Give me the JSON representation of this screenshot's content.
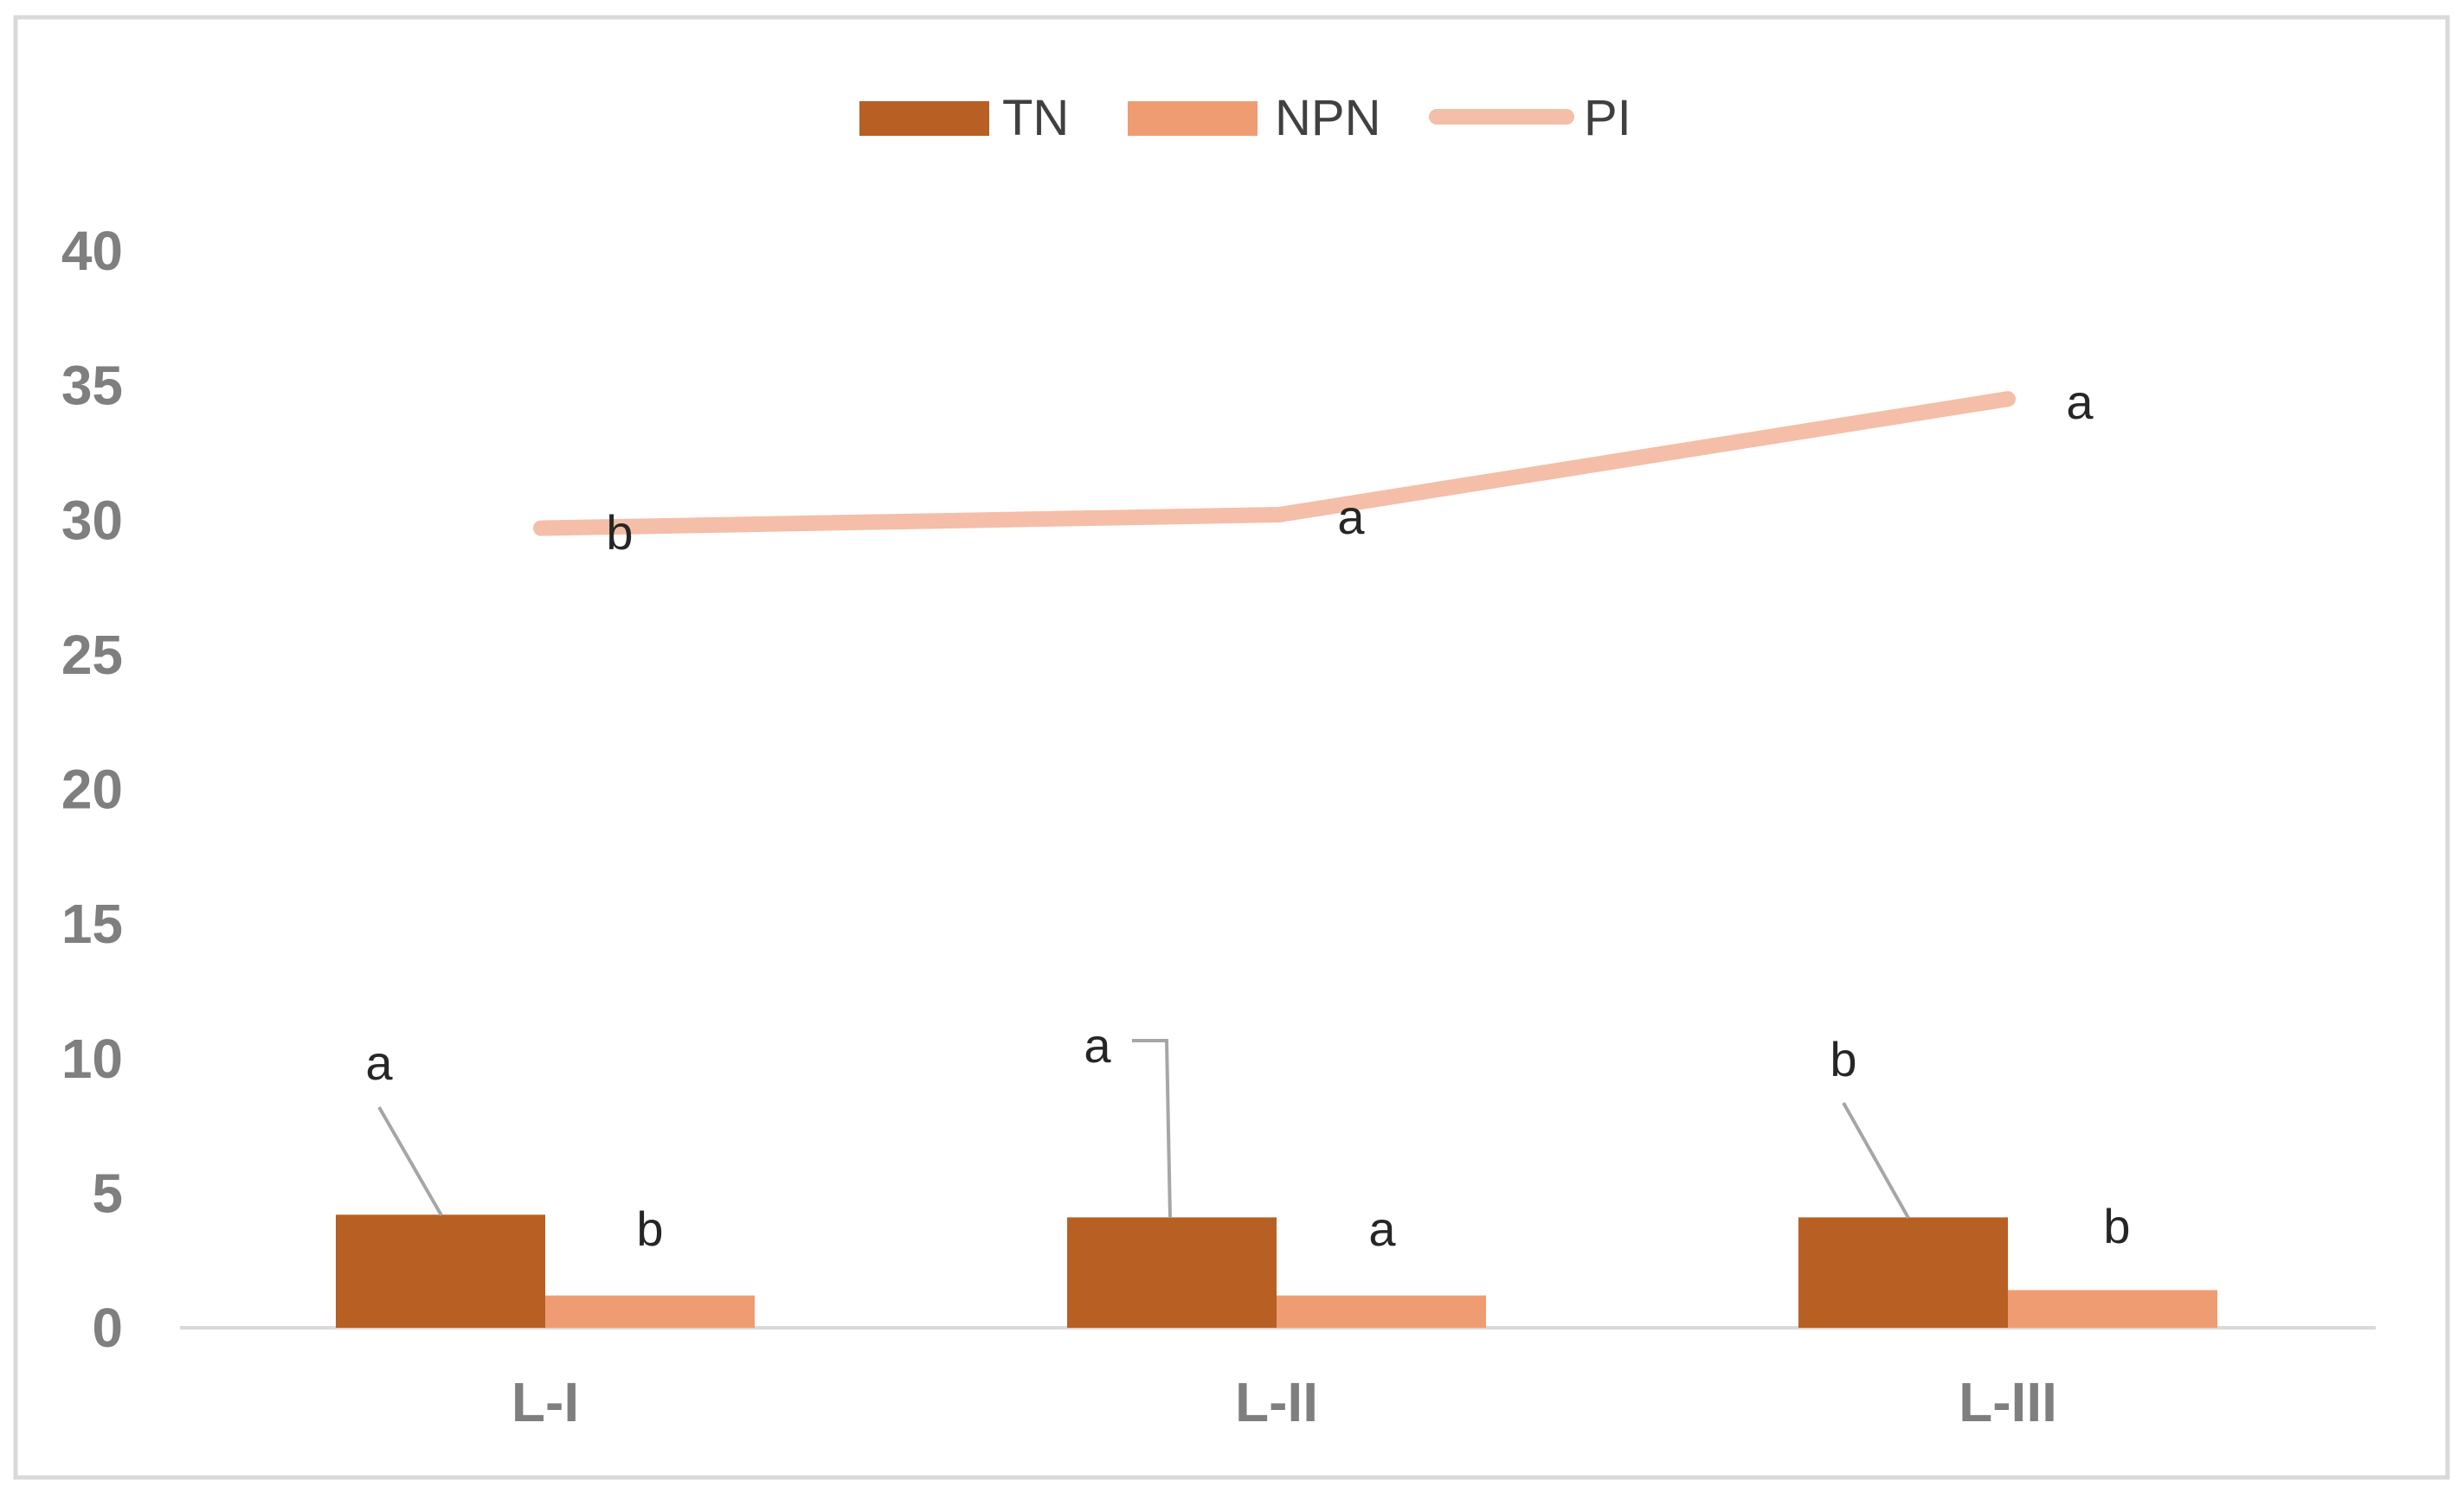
{
  "chart_data": {
    "type": "bar",
    "categories": [
      "L-I",
      "L-II",
      "L-III"
    ],
    "yticks": [
      "0",
      "5",
      "10",
      "15",
      "20",
      "25",
      "30",
      "35",
      "40"
    ],
    "ylim": [
      0,
      40
    ],
    "legend_position": "top",
    "series": [
      {
        "name": "TN",
        "type": "bar",
        "color": "#b85f24",
        "values": [
          4.2,
          4.1,
          4.1
        ],
        "labels": [
          "a",
          "a",
          "b"
        ]
      },
      {
        "name": "NPN",
        "type": "bar",
        "color": "#f09c72",
        "values": [
          1.2,
          1.2,
          1.4
        ],
        "labels": [
          "b",
          "a",
          "b"
        ]
      },
      {
        "name": "PI",
        "type": "line",
        "color": "#f4bea8",
        "values": [
          29.7,
          30.2,
          34.5
        ],
        "labels": [
          "b",
          "a",
          "a"
        ]
      }
    ]
  }
}
